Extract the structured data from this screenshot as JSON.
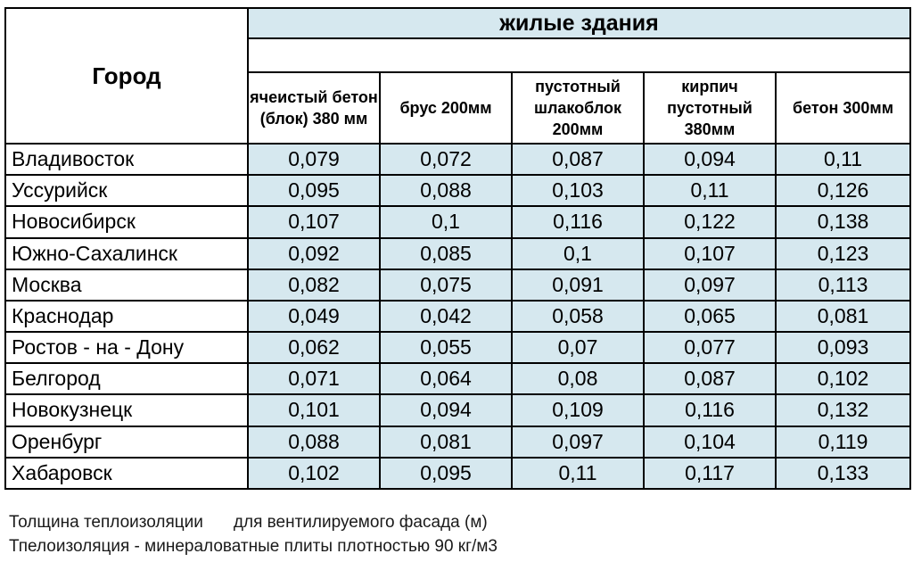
{
  "table": {
    "city_header": "Город",
    "group_header": "жилые здания",
    "columns": [
      "ячеистый бетон (блок) 380 мм",
      "брус 200мм",
      "пустотный шлакоблок 200мм",
      "кирпич пустотный 380мм",
      "бетон 300мм"
    ],
    "rows": [
      {
        "city": "Владивосток",
        "values": [
          "0,079",
          "0,072",
          "0,087",
          "0,094",
          "0,11"
        ]
      },
      {
        "city": "Уссурийск",
        "values": [
          "0,095",
          "0,088",
          "0,103",
          "0,11",
          "0,126"
        ]
      },
      {
        "city": "Новосибирск",
        "values": [
          "0,107",
          "0,1",
          "0,116",
          "0,122",
          "0,138"
        ]
      },
      {
        "city": "Южно-Сахалинск",
        "values": [
          "0,092",
          "0,085",
          "0,1",
          "0,107",
          "0,123"
        ]
      },
      {
        "city": "Москва",
        "values": [
          "0,082",
          "0,075",
          "0,091",
          "0,097",
          "0,113"
        ]
      },
      {
        "city": "Краснодар",
        "values": [
          "0,049",
          "0,042",
          "0,058",
          "0,065",
          "0,081"
        ]
      },
      {
        "city": "Ростов - на - Дону",
        "values": [
          "0,062",
          "0,055",
          "0,07",
          "0,077",
          "0,093"
        ]
      },
      {
        "city": "Белгород",
        "values": [
          "0,071",
          "0,064",
          "0,08",
          "0,087",
          "0,102"
        ]
      },
      {
        "city": "Новокузнецк",
        "values": [
          "0,101",
          "0,094",
          "0,109",
          "0,116",
          "0,132"
        ]
      },
      {
        "city": "Оренбург",
        "values": [
          "0,088",
          "0,081",
          "0,097",
          "0,104",
          "0,119"
        ]
      },
      {
        "city": "Хабаровск",
        "values": [
          "0,102",
          "0,095",
          "0,11",
          "0,117",
          "0,133"
        ]
      }
    ]
  },
  "notes": {
    "line1_part1": "Толщина теплоизоляции",
    "line1_part2": "для вентилируемого фасада (м)",
    "line2": "Тпелоизоляция - минераловатные плиты плотностью 90 кг/м3"
  },
  "colors": {
    "cell_fill": "#d6e8ef",
    "border": "#000000"
  }
}
